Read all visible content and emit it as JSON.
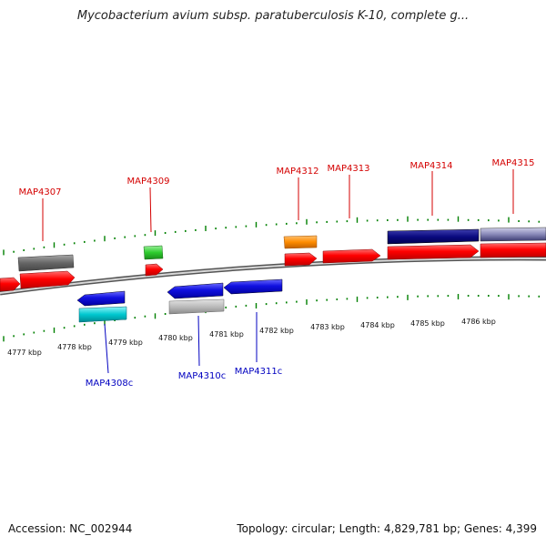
{
  "title": "Mycobacterium avium subsp. paratuberculosis K-10, complete g...",
  "footer": {
    "accession": "Accession: NC_002944",
    "topology": "Topology: circular; Length: 4,829,781 bp; Genes: 4,399"
  },
  "gene_labels_forward": [
    "MAP4307",
    "MAP4309",
    "MAP4312",
    "MAP4313",
    "MAP4314",
    "MAP4315"
  ],
  "gene_labels_reverse": [
    "MAP4308c",
    "MAP4310c",
    "MAP4311c"
  ],
  "kbp_labels": [
    "4777 kbp",
    "4778 kbp",
    "4779 kbp",
    "4780 kbp",
    "4781 kbp",
    "4782 kbp",
    "4783 kbp",
    "4784 kbp",
    "4785 kbp",
    "4786 kbp"
  ],
  "colors": {
    "forward_label": "#d40000",
    "reverse_label": "#0000c0",
    "tick": "#008000",
    "cds_red": "#ff0000",
    "cds_blue": "#1010e0",
    "gray_feature": "#666666",
    "light_gray_feature": "#bbbbbb",
    "green_feature": "#2ecc2e",
    "orange_feature": "#ff8c00",
    "navy_feature": "#0a0a80",
    "cyan_feature": "#00c8d0",
    "backbone": "#888888"
  }
}
